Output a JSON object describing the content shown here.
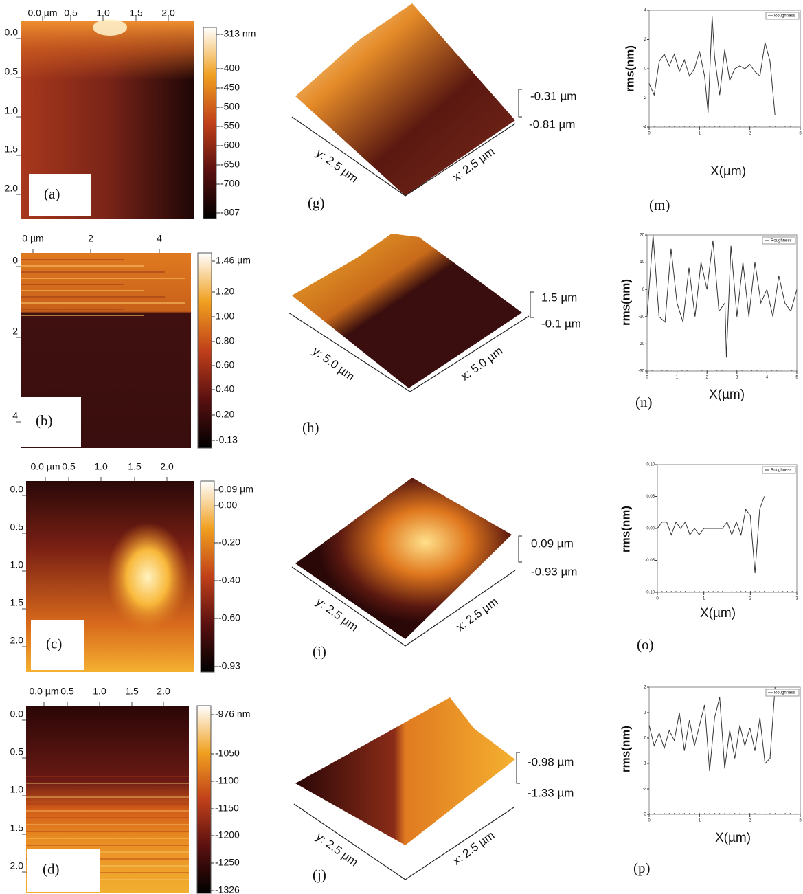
{
  "maps": [
    {
      "label": "(a)",
      "x_ticks": [
        "0.0 µm",
        "0.5",
        "1.0",
        "1.5",
        "2.0"
      ],
      "y_ticks": [
        "0.0",
        "0.5",
        "1.0",
        "1.5",
        "2.0"
      ],
      "colorbar_ticks": [
        "-313 nm",
        "-400",
        "-450",
        "-500",
        "-550",
        "-600",
        "-650",
        "-700",
        "-807"
      ]
    },
    {
      "label": "(b)",
      "x_ticks": [
        "0 µm",
        "2",
        "4"
      ],
      "y_ticks": [
        "0",
        "2",
        "4"
      ],
      "colorbar_ticks": [
        "1.46 µm",
        "1.20",
        "1.00",
        "0.80",
        "0.60",
        "0.40",
        "0.20",
        "-0.13"
      ]
    },
    {
      "label": "(c)",
      "x_ticks": [
        "0.0 µm",
        "0.5",
        "1.0",
        "1.5",
        "2.0"
      ],
      "y_ticks": [
        "0.0",
        "0.5",
        "1.0",
        "1.5",
        "2.0"
      ],
      "colorbar_ticks": [
        "0.09 µm",
        "0.00",
        "-0.20",
        "-0.40",
        "-0.60",
        "-0.93"
      ]
    },
    {
      "label": "(d)",
      "x_ticks": [
        "0.0 µm",
        "0.5",
        "1.0",
        "1.5",
        "2.0"
      ],
      "y_ticks": [
        "0.0",
        "0.5",
        "1.0",
        "1.5",
        "2.0"
      ],
      "colorbar_ticks": [
        "-976 nm",
        "-1050",
        "-1100",
        "-1150",
        "-1200",
        "-1250",
        "-1326"
      ]
    }
  ],
  "surfaces": [
    {
      "label": "(g)",
      "y_axis": "y: 2.5 µm",
      "x_axis": "x: 2.5 µm",
      "z_top": "-0.31 µm",
      "z_bottom": "-0.81 µm"
    },
    {
      "label": "(h)",
      "y_axis": "y: 5.0 µm",
      "x_axis": "x: 5.0 µm",
      "z_top": "1.5 µm",
      "z_bottom": "-0.1 µm"
    },
    {
      "label": "(i)",
      "y_axis": "y: 2.5 µm",
      "x_axis": "x: 2.5 µm",
      "z_top": "0.09 µm",
      "z_bottom": "-0.93 µm"
    },
    {
      "label": "(j)",
      "y_axis": "y: 2.5 µm",
      "x_axis": "x: 2.5 µm",
      "z_top": "-0.98 µm",
      "z_bottom": "-1.33 µm"
    }
  ],
  "profiles": [
    {
      "type": "line",
      "label": "(m)",
      "y_label": "rms(nm)",
      "x_label": "X(µm)",
      "xlim": [
        0,
        3
      ],
      "xticks": [
        0,
        1,
        2,
        3
      ],
      "ylim": [
        -4,
        4
      ],
      "yticks": [
        -4,
        -2,
        0,
        2,
        4
      ],
      "series": [
        {
          "name": "Roughness",
          "color": "#333333",
          "x": [
            0,
            0.1,
            0.2,
            0.3,
            0.4,
            0.5,
            0.6,
            0.7,
            0.8,
            0.9,
            1.0,
            1.1,
            1.17,
            1.25,
            1.3,
            1.4,
            1.5,
            1.6,
            1.7,
            1.8,
            1.9,
            2.0,
            2.1,
            2.2,
            2.3,
            2.4,
            2.5
          ],
          "values": [
            -1,
            -1.8,
            0.5,
            1,
            0.2,
            1,
            -0.2,
            0.6,
            -0.5,
            0,
            1.2,
            -0.5,
            -3,
            3.6,
            0.8,
            -1.8,
            1.3,
            -0.8,
            0,
            0.2,
            0,
            0.3,
            -0.2,
            -0.5,
            1.8,
            0.5,
            -3.2
          ]
        }
      ]
    },
    {
      "type": "line",
      "label": "(n)",
      "y_label": "rms(nm)",
      "x_label": "X(µm)",
      "xlim": [
        0,
        5
      ],
      "xticks": [
        0,
        1,
        2,
        3,
        4,
        5
      ],
      "ylim": [
        -30,
        20
      ],
      "yticks": [
        -30,
        -20,
        -10,
        0,
        10,
        20
      ],
      "series": [
        {
          "name": "Roughness",
          "color": "#333333",
          "x": [
            0,
            0.2,
            0.4,
            0.6,
            0.8,
            1.0,
            1.2,
            1.4,
            1.6,
            1.8,
            2.0,
            2.2,
            2.4,
            2.6,
            2.65,
            2.8,
            3.0,
            3.2,
            3.4,
            3.6,
            3.8,
            4.0,
            4.2,
            4.4,
            4.6,
            4.8,
            5.0
          ],
          "values": [
            -10,
            20,
            -10,
            -12,
            15,
            -5,
            -12,
            8,
            -10,
            10,
            0,
            18,
            -8,
            -5,
            -25,
            16,
            -10,
            10,
            -10,
            10,
            -5,
            0,
            -10,
            5,
            -5,
            -8,
            0
          ]
        }
      ]
    },
    {
      "type": "line",
      "label": "(o)",
      "y_label": "rms(nm)",
      "x_label": "X(µm)",
      "xlim": [
        0,
        3
      ],
      "xticks": [
        0,
        1,
        2,
        3
      ],
      "ylim": [
        -0.1,
        0.1
      ],
      "yticks": [
        {
          "value": -0.1,
          "label": "-0.10"
        },
        {
          "value": -0.05,
          "label": "-0.05"
        },
        {
          "value": 0,
          "label": "0.00"
        },
        {
          "value": 0.05,
          "label": "0.05"
        },
        {
          "value": 0.1,
          "label": "0.10"
        }
      ],
      "series": [
        {
          "name": "Roughness",
          "color": "#333333",
          "x": [
            0,
            0.1,
            0.2,
            0.3,
            0.4,
            0.5,
            0.6,
            0.7,
            0.8,
            0.9,
            1.0,
            1.1,
            1.2,
            1.3,
            1.4,
            1.5,
            1.6,
            1.7,
            1.8,
            1.9,
            2.0,
            2.1,
            2.2,
            2.3
          ],
          "values": [
            0,
            0.01,
            0.01,
            -0.01,
            0.01,
            0,
            0.01,
            -0.01,
            0,
            -0.01,
            0,
            0,
            0,
            0,
            0,
            0.01,
            -0.01,
            0.01,
            -0.01,
            0.03,
            0.02,
            -0.07,
            0.03,
            0.05
          ]
        }
      ]
    },
    {
      "type": "line",
      "label": "(p)",
      "y_label": "rms(nm)",
      "x_label": "X(µm)",
      "xlim": [
        0,
        3
      ],
      "xticks": [
        0,
        1,
        2,
        3
      ],
      "ylim": [
        -3,
        2
      ],
      "yticks": [
        -3,
        -2,
        -1,
        0,
        1,
        2
      ],
      "series": [
        {
          "name": "Roughness",
          "color": "#333333",
          "x": [
            0,
            0.1,
            0.2,
            0.3,
            0.4,
            0.5,
            0.6,
            0.7,
            0.8,
            0.9,
            1.0,
            1.1,
            1.2,
            1.3,
            1.4,
            1.5,
            1.6,
            1.7,
            1.8,
            1.9,
            2.0,
            2.1,
            2.2,
            2.3,
            2.4,
            2.5
          ],
          "values": [
            0.5,
            -0.3,
            0.2,
            -0.4,
            0.3,
            -0.1,
            1,
            -0.5,
            0.7,
            -0.3,
            0.5,
            1.3,
            -1.3,
            0.8,
            1.6,
            -1.2,
            0.3,
            -0.8,
            0.5,
            -0.3,
            0.4,
            -0.5,
            0.8,
            -1,
            -0.8,
            2
          ]
        }
      ]
    }
  ]
}
